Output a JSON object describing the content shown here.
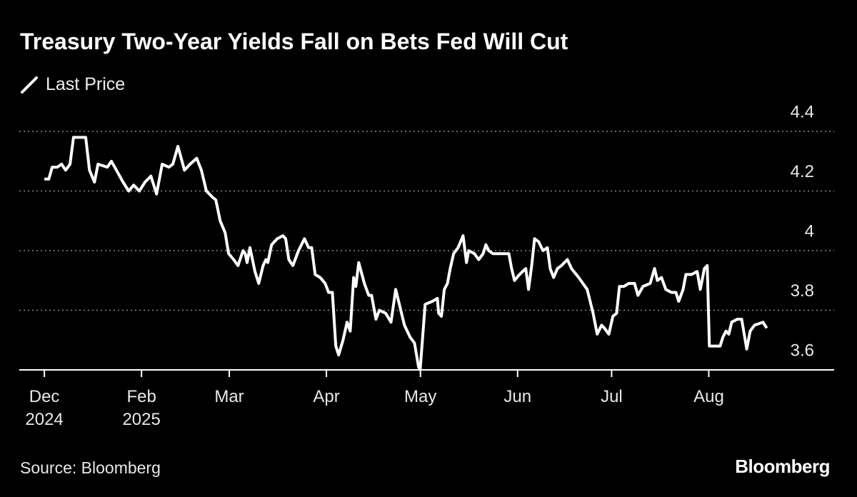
{
  "chart_data": {
    "type": "line",
    "title": "Treasury Two-Year Yields Fall on Bets Fed Will Cut",
    "source": "Source: Bloomberg",
    "brand": "Bloomberg",
    "legend": "top-left",
    "grid": true,
    "x": [
      0,
      1.4,
      2.5,
      4.1,
      5.5,
      6.8,
      8.2,
      9.3,
      10.9,
      13.2,
      14.4,
      16,
      17.1,
      20.1,
      21.4,
      23,
      25.1,
      26.9,
      28.5,
      30.3,
      32.1,
      34,
      35.8,
      37.6,
      39.7,
      41,
      42.6,
      44.7,
      46.5,
      48.6,
      50.1,
      51.7,
      53.6,
      54.7,
      56.1,
      57.7,
      58.8,
      60.4,
      61.8,
      63.4,
      64.1,
      64.7,
      65.6,
      67.2,
      68.4,
      69.8,
      70.7,
      71.3,
      72.5,
      74.3,
      76.1,
      77,
      78,
      79.3,
      81.1,
      83,
      84.3,
      85.3,
      86.4,
      88,
      89.6,
      90.7,
      91.9,
      93,
      93.9,
      95.3,
      96.6,
      97.6,
      98.7,
      99.4,
      100.3,
      102.1,
      103.5,
      104.4,
      105.8,
      106.9,
      108.9,
      110.6,
      112.1,
      113.5,
      114.9,
      116.7,
      118.1,
      119.4,
      119.9,
      121.5,
      123.8,
      125.4,
      125.8,
      126.7,
      127.6,
      128.6,
      129.5,
      130.6,
      132,
      133.6,
      134.7,
      135.4,
      137.2,
      138.6,
      140,
      140.9,
      141.8,
      143.1,
      145.4,
      147.3,
      148.2,
      149.1,
      150,
      151.6,
      153.6,
      154.5,
      155.5,
      156.4,
      157.7,
      159.1,
      160.5,
      161.4,
      162.5,
      163.7,
      165,
      166.9,
      168.2,
      170.5,
      173.2,
      175.1,
      176.4,
      177.8,
      178.7,
      180.1,
      181.4,
      182.6,
      183.5,
      184.9,
      186.5,
      188.3,
      189.4,
      191,
      193.3,
      194.7,
      195.6,
      196.9,
      198.3,
      200.1,
      201.5,
      202.4,
      203.8,
      204.7,
      206.5,
      208.3,
      209.3,
      210.6,
      211.5,
      212.2,
      213.8,
      215.6,
      216.5,
      217.5,
      218.4,
      219.3,
      221.1,
      222.5,
      224.1,
      225.2,
      226.6,
      229.3,
      230.5
    ],
    "series": [
      {
        "name": "Last Price",
        "color": "#ffffff",
        "values": [
          4.24,
          4.24,
          4.28,
          4.28,
          4.29,
          4.27,
          4.29,
          4.38,
          4.38,
          4.38,
          4.27,
          4.23,
          4.29,
          4.28,
          4.3,
          4.27,
          4.23,
          4.2,
          4.22,
          4.2,
          4.23,
          4.25,
          4.19,
          4.29,
          4.28,
          4.29,
          4.35,
          4.27,
          4.29,
          4.31,
          4.27,
          4.2,
          4.18,
          4.17,
          4.1,
          4.06,
          3.99,
          3.97,
          3.95,
          4.0,
          3.99,
          3.96,
          4.01,
          3.93,
          3.89,
          3.95,
          3.97,
          3.96,
          4.02,
          4.04,
          4.05,
          4.04,
          3.97,
          3.95,
          4.0,
          4.04,
          4.01,
          4.01,
          3.92,
          3.91,
          3.89,
          3.86,
          3.86,
          3.68,
          3.65,
          3.7,
          3.76,
          3.73,
          3.91,
          3.88,
          3.96,
          3.89,
          3.85,
          3.85,
          3.77,
          3.8,
          3.79,
          3.76,
          3.87,
          3.81,
          3.75,
          3.71,
          3.69,
          3.61,
          3.6,
          3.82,
          3.83,
          3.84,
          3.79,
          3.78,
          3.87,
          3.89,
          3.94,
          3.99,
          4.01,
          4.05,
          3.96,
          4.0,
          3.99,
          3.97,
          3.99,
          4.02,
          4.0,
          3.99,
          3.99,
          3.99,
          3.99,
          3.94,
          3.9,
          3.92,
          3.94,
          3.87,
          3.95,
          4.04,
          4.03,
          4.0,
          4.01,
          3.94,
          3.91,
          3.94,
          3.95,
          3.97,
          3.94,
          3.91,
          3.87,
          3.79,
          3.72,
          3.75,
          3.74,
          3.72,
          3.78,
          3.79,
          3.88,
          3.88,
          3.89,
          3.89,
          3.85,
          3.88,
          3.89,
          3.94,
          3.9,
          3.91,
          3.87,
          3.86,
          3.86,
          3.83,
          3.87,
          3.92,
          3.92,
          3.93,
          3.87,
          3.94,
          3.95,
          3.68,
          3.68,
          3.68,
          3.71,
          3.73,
          3.72,
          3.76,
          3.77,
          3.77,
          3.67,
          3.73,
          3.75,
          3.76,
          3.74
        ]
      }
    ],
    "xlim": [
      -8,
      252
    ],
    "xticks": [
      {
        "value": 0,
        "label": "Dec 2024"
      },
      {
        "value": 31,
        "label": "Feb 2025"
      },
      {
        "value": 59,
        "label": "Mar"
      },
      {
        "value": 90,
        "label": "Apr"
      },
      {
        "value": 120,
        "label": "May"
      },
      {
        "value": 151,
        "label": "Jun"
      },
      {
        "value": 181,
        "label": "Jul"
      },
      {
        "value": 212,
        "label": "Aug"
      }
    ],
    "ylim": [
      3.6,
      4.4
    ],
    "yticks": [
      3.6,
      3.8,
      4,
      4.2,
      4.4
    ]
  }
}
